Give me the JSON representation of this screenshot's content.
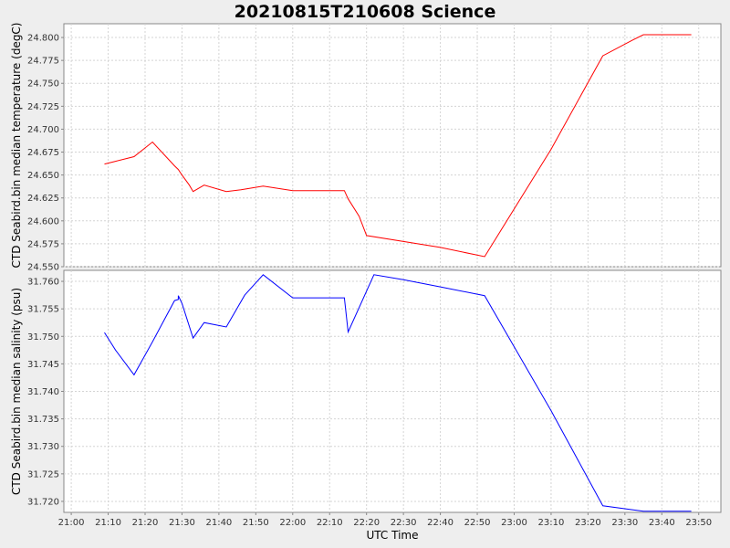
{
  "chart_data": {
    "type": "line",
    "title": "20210815T210608 Science",
    "xlabel": "UTC Time",
    "x_ticks": [
      "21:00",
      "21:10",
      "21:20",
      "21:30",
      "21:40",
      "21:50",
      "22:00",
      "22:10",
      "22:20",
      "22:30",
      "22:40",
      "22:50",
      "23:00",
      "23:10",
      "23:20",
      "23:30",
      "23:40",
      "23:50"
    ],
    "xlim": [
      "20:58",
      "23:56"
    ],
    "grid": true,
    "panels": [
      {
        "name": "temperature",
        "ylabel": "CTD Seabird.bin median temperature (degC)",
        "ylim": [
          24.55,
          24.815
        ],
        "y_ticks": [
          "24.550",
          "24.575",
          "24.600",
          "24.625",
          "24.650",
          "24.675",
          "24.700",
          "24.725",
          "24.750",
          "24.775",
          "24.800"
        ],
        "series": [
          {
            "color": "#ff0000",
            "points": [
              [
                "21:09",
                24.662
              ],
              [
                "21:12",
                24.665
              ],
              [
                "21:17",
                24.67
              ],
              [
                "21:22",
                24.686
              ],
              [
                "21:28",
                24.66
              ],
              [
                "21:29",
                24.656
              ],
              [
                "21:30",
                24.65
              ],
              [
                "21:32",
                24.639
              ],
              [
                "21:33",
                24.632
              ],
              [
                "21:36",
                24.639
              ],
              [
                "21:42",
                24.632
              ],
              [
                "21:46",
                24.634
              ],
              [
                "21:52",
                24.638
              ],
              [
                "22:00",
                24.633
              ],
              [
                "22:14",
                24.633
              ],
              [
                "22:15",
                24.624
              ],
              [
                "22:18",
                24.605
              ],
              [
                "22:20",
                24.584
              ],
              [
                "22:40",
                24.571
              ],
              [
                "22:52",
                24.561
              ],
              [
                "23:10",
                24.678
              ],
              [
                "23:24",
                24.78
              ],
              [
                "23:32",
                24.797
              ],
              [
                "23:35",
                24.803
              ],
              [
                "23:48",
                24.803
              ]
            ]
          }
        ]
      },
      {
        "name": "salinity",
        "ylabel": "CTD Seabird.bin median salinity (psu)",
        "ylim": [
          31.718,
          31.762
        ],
        "y_ticks": [
          "31.720",
          "31.725",
          "31.730",
          "31.735",
          "31.740",
          "31.745",
          "31.750",
          "31.755",
          "31.760"
        ],
        "series": [
          {
            "color": "#0000ff",
            "points": [
              [
                "21:09",
                31.7507
              ],
              [
                "21:12",
                31.7475
              ],
              [
                "21:17",
                31.743
              ],
              [
                "21:22",
                31.749
              ],
              [
                "21:28",
                31.7565
              ],
              [
                "21:29",
                31.7567
              ],
              [
                "21:29",
                31.7574
              ],
              [
                "21:30",
                31.756
              ],
              [
                "21:33",
                31.7497
              ],
              [
                "21:36",
                31.7525
              ],
              [
                "21:42",
                31.7517
              ],
              [
                "21:47",
                31.7575
              ],
              [
                "21:52",
                31.7612
              ],
              [
                "22:00",
                31.757
              ],
              [
                "22:14",
                31.757
              ],
              [
                "22:15",
                31.7508
              ],
              [
                "22:22",
                31.7612
              ],
              [
                "22:30",
                31.7603
              ],
              [
                "22:40",
                31.759
              ],
              [
                "22:52",
                31.7574
              ],
              [
                "23:10",
                31.7365
              ],
              [
                "23:24",
                31.7192
              ],
              [
                "23:35",
                31.7182
              ],
              [
                "23:48",
                31.7182
              ]
            ]
          }
        ]
      }
    ]
  }
}
